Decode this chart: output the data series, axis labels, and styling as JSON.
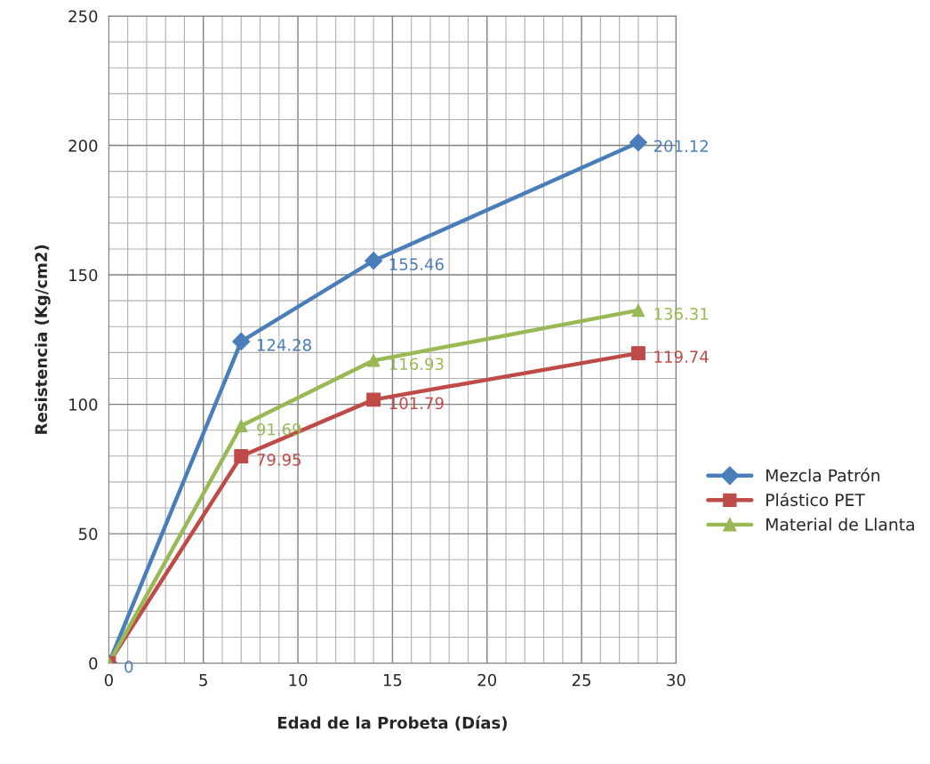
{
  "chart_data": {
    "type": "line",
    "xlabel": "Edad de la Probeta (Días)",
    "ylabel": "Resistencia (Kg/cm2)",
    "x": [
      0,
      7,
      14,
      28
    ],
    "series": [
      {
        "name": "Mezcla Patrón",
        "color": "#4a7ebb",
        "marker": "diamond",
        "values": [
          0,
          124.28,
          155.46,
          201.12
        ]
      },
      {
        "name": "Plástico PET",
        "color": "#be4b48",
        "marker": "square",
        "values": [
          0,
          79.95,
          101.79,
          119.74
        ],
        "value_labels": [
          null,
          "79.95",
          "101.79",
          "119.74"
        ]
      },
      {
        "name": "Material de Llanta",
        "color": "#98b954",
        "marker": "triangle",
        "values": [
          0,
          91.69,
          116.93,
          136.31
        ],
        "value_labels": [
          null,
          "91.69",
          "116.93",
          "136.31"
        ]
      }
    ],
    "xlim": [
      0,
      30
    ],
    "xticks": [
      0,
      5,
      10,
      15,
      20,
      25,
      30
    ],
    "ylim": [
      0,
      250
    ],
    "yticks": [
      0,
      50,
      100,
      150,
      200,
      250
    ],
    "grid": true,
    "legend": "right",
    "data_labels": true
  }
}
